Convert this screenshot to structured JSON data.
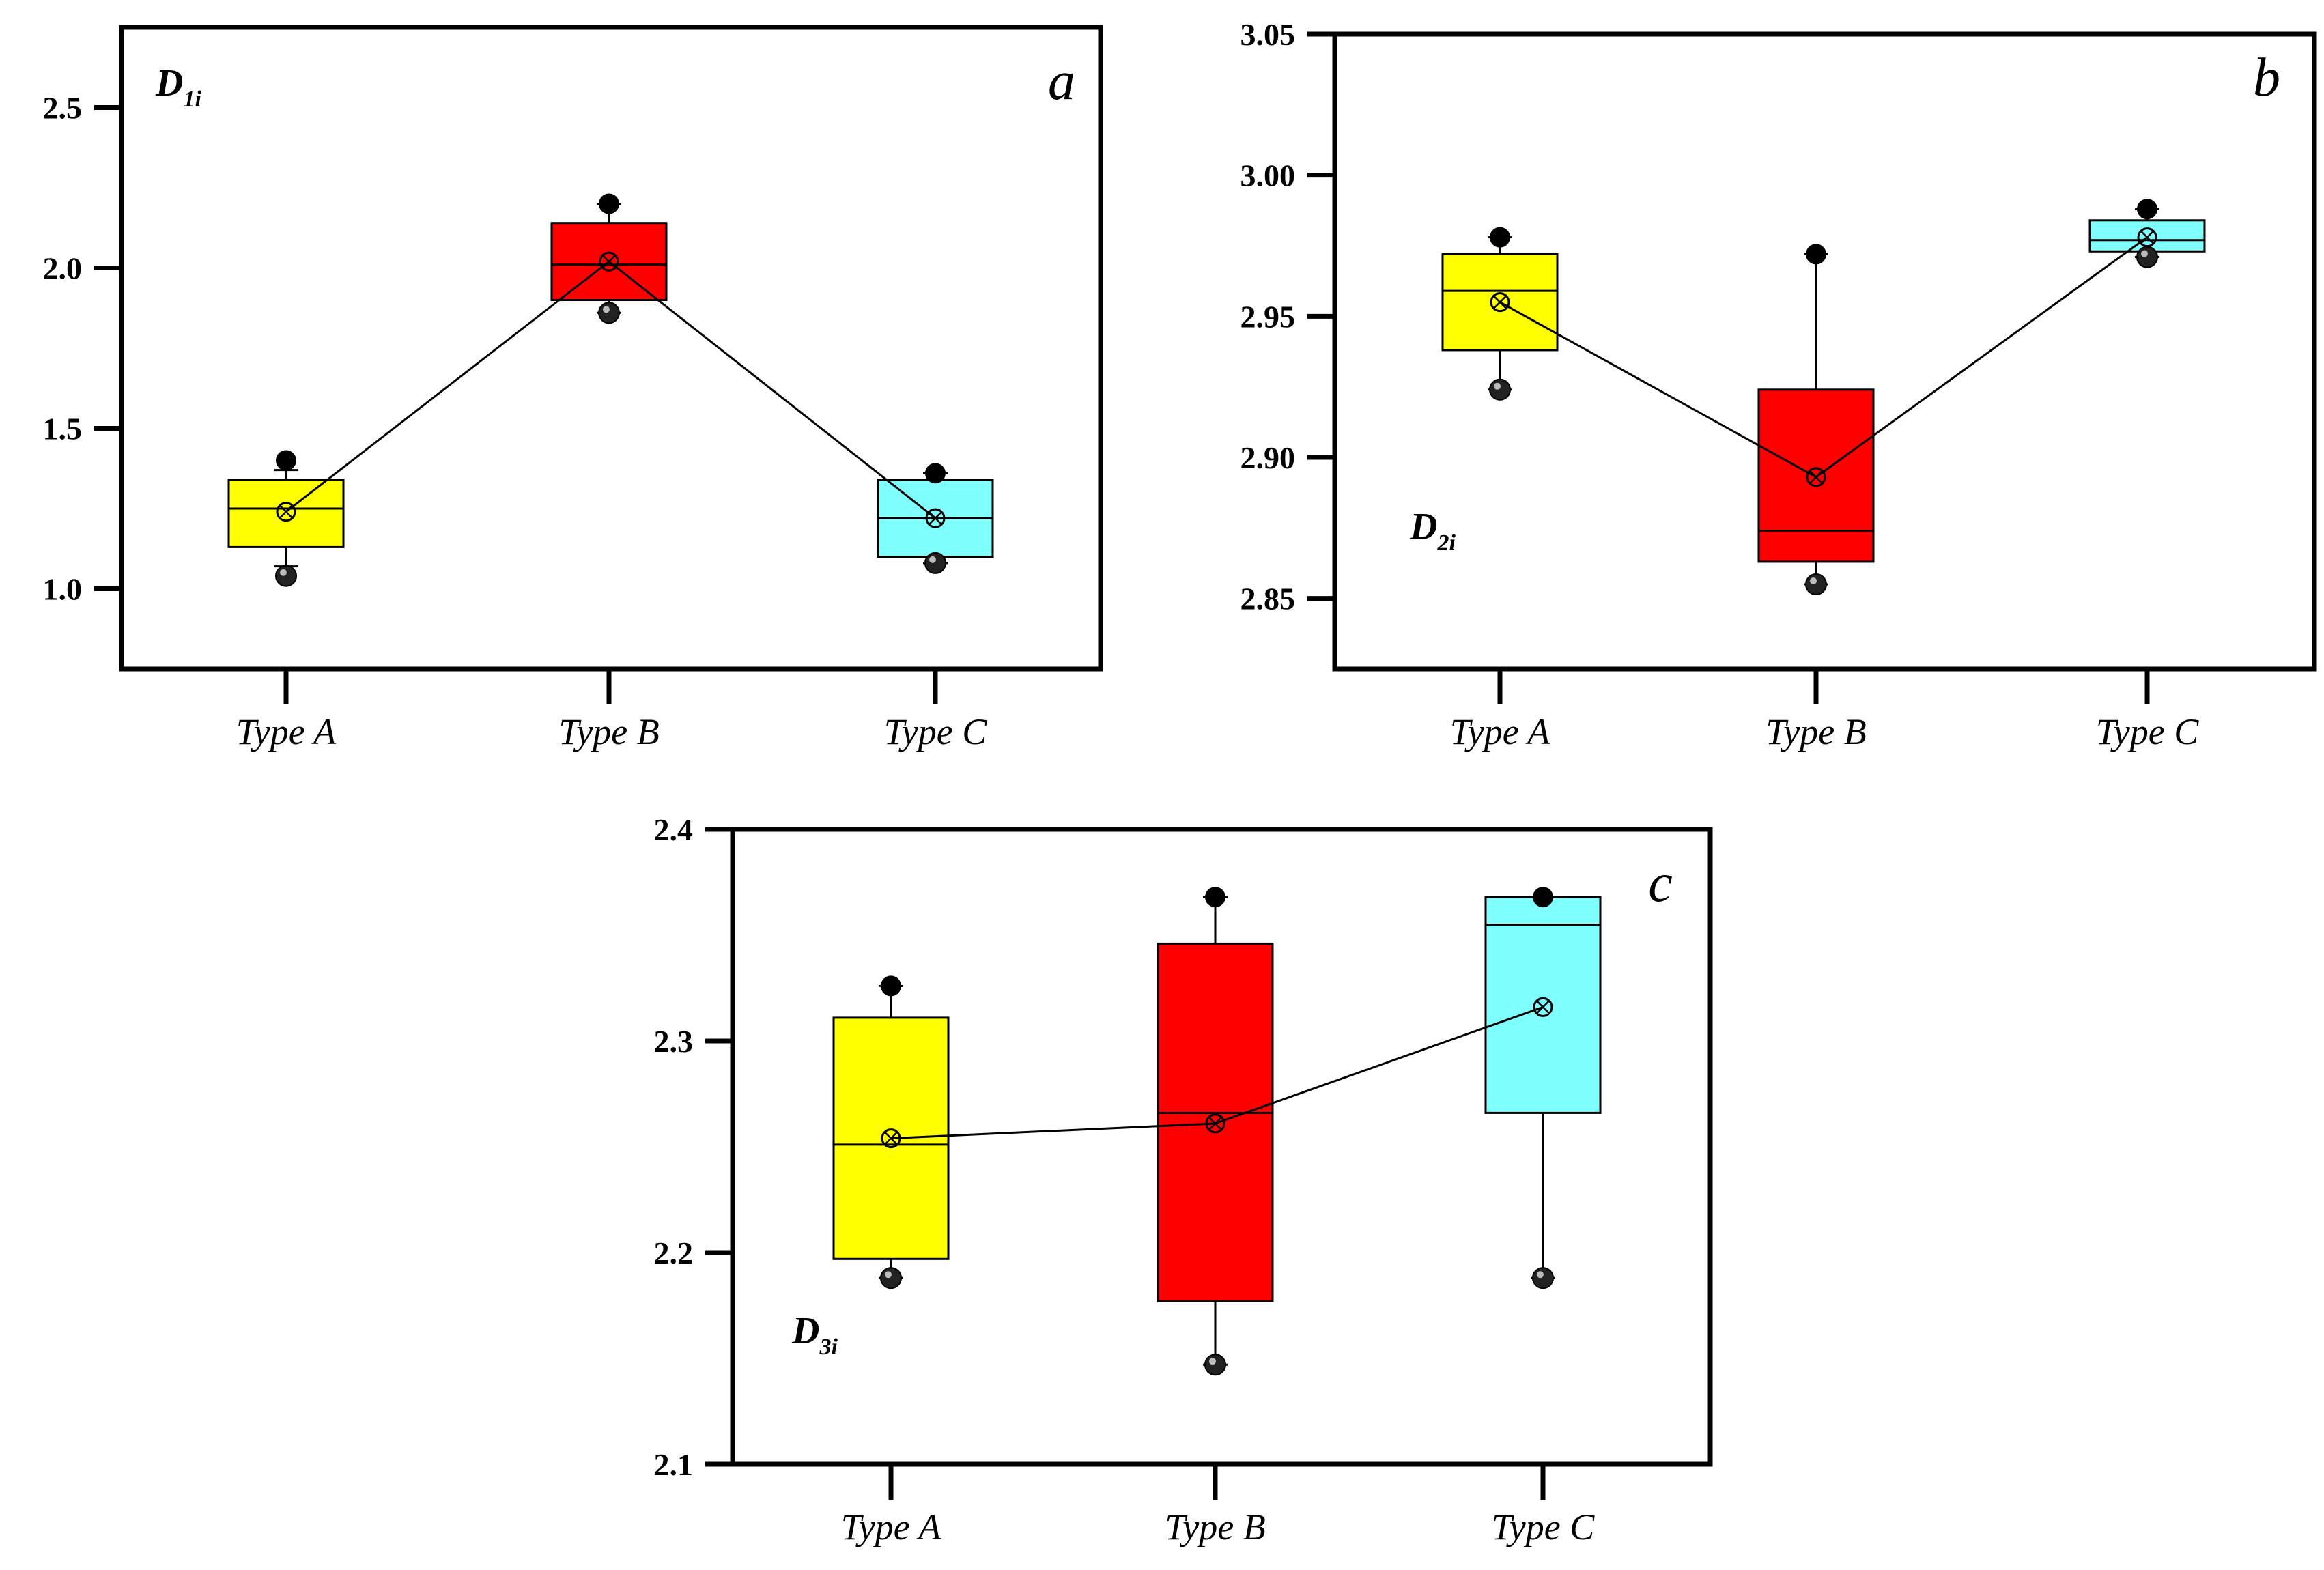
{
  "colors": {
    "Type A": "#ffff00",
    "Type B": "#ff0000",
    "Type C": "#80ffff",
    "axis": "#000000"
  },
  "chart_data": [
    {
      "type": "box",
      "panel_label": "a",
      "variable_label": {
        "main": "D",
        "sub": "1i"
      },
      "categories": [
        "Type A",
        "Type B",
        "Type C"
      ],
      "ylim": [
        0.75,
        2.75
      ],
      "yticks": [
        1.0,
        1.5,
        2.0,
        2.5
      ],
      "ytick_labels": [
        "1.0",
        "1.5",
        "2.0",
        "2.5"
      ],
      "variable_label_position": "top-left",
      "boxes": [
        {
          "category": "Type A",
          "q1": 1.13,
          "median": 1.25,
          "q3": 1.34,
          "whisker_low": 1.07,
          "whisker_high": 1.37,
          "mean": 1.24,
          "min": 1.04,
          "max": 1.4
        },
        {
          "category": "Type B",
          "q1": 1.9,
          "median": 2.01,
          "q3": 2.14,
          "whisker_low": 1.86,
          "whisker_high": 2.2,
          "mean": 2.02,
          "min": 1.86,
          "max": 2.2
        },
        {
          "category": "Type C",
          "q1": 1.1,
          "median": 1.22,
          "q3": 1.34,
          "whisker_low": 1.08,
          "whisker_high": 1.36,
          "mean": 1.22,
          "min": 1.08,
          "max": 1.36
        }
      ]
    },
    {
      "type": "box",
      "panel_label": "b",
      "variable_label": {
        "main": "D",
        "sub": "2i"
      },
      "categories": [
        "Type A",
        "Type B",
        "Type C"
      ],
      "ylim": [
        2.825,
        3.05
      ],
      "yticks": [
        2.85,
        2.9,
        2.95,
        3.0,
        3.05
      ],
      "ytick_labels": [
        "2.85",
        "2.90",
        "2.95",
        "3.00",
        "3.05"
      ],
      "variable_label_position": "middle-left",
      "boxes": [
        {
          "category": "Type A",
          "q1": 2.938,
          "median": 2.959,
          "q3": 2.972,
          "whisker_low": 2.924,
          "whisker_high": 2.978,
          "mean": 2.955,
          "min": 2.924,
          "max": 2.978
        },
        {
          "category": "Type B",
          "q1": 2.863,
          "median": 2.874,
          "q3": 2.924,
          "whisker_low": 2.855,
          "whisker_high": 2.972,
          "mean": 2.893,
          "min": 2.855,
          "max": 2.972
        },
        {
          "category": "Type C",
          "q1": 2.973,
          "median": 2.977,
          "q3": 2.984,
          "whisker_low": 2.971,
          "whisker_high": 2.988,
          "mean": 2.978,
          "min": 2.971,
          "max": 2.988
        }
      ]
    },
    {
      "type": "box",
      "panel_label": "c",
      "variable_label": {
        "main": "D",
        "sub": "3i"
      },
      "categories": [
        "Type A",
        "Type B",
        "Type C"
      ],
      "ylim": [
        2.1,
        2.4
      ],
      "yticks": [
        2.1,
        2.2,
        2.3,
        2.4
      ],
      "ytick_labels": [
        "2.1",
        "2.2",
        "2.3",
        "2.4"
      ],
      "variable_label_position": "bottom-left",
      "boxes": [
        {
          "category": "Type A",
          "q1": 2.197,
          "median": 2.251,
          "q3": 2.311,
          "whisker_low": 2.188,
          "whisker_high": 2.326,
          "mean": 2.254,
          "min": 2.188,
          "max": 2.326
        },
        {
          "category": "Type B",
          "q1": 2.177,
          "median": 2.266,
          "q3": 2.346,
          "whisker_low": 2.147,
          "whisker_high": 2.368,
          "mean": 2.261,
          "min": 2.147,
          "max": 2.368
        },
        {
          "category": "Type C",
          "q1": 2.266,
          "median": 2.355,
          "q3": 2.368,
          "whisker_low": 2.188,
          "whisker_high": 2.368,
          "mean": 2.316,
          "min": 2.188,
          "max": 2.368
        }
      ]
    }
  ]
}
